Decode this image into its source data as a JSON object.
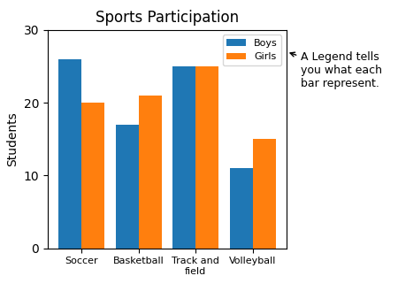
{
  "chart_data": {
    "type": "bar",
    "title": "Sports Participation",
    "categories": [
      "Soccer",
      "Basketball",
      "Track and\nfield",
      "Volleyball"
    ],
    "series": [
      {
        "name": "Boys",
        "values": [
          26,
          17,
          25,
          11
        ]
      },
      {
        "name": "Girls",
        "values": [
          20,
          21,
          25,
          15
        ]
      }
    ],
    "y_label": "Students",
    "ylim": [
      0,
      30
    ],
    "yticks": [
      0,
      10,
      20,
      30
    ],
    "legend": "upper right",
    "annotations": [
      "A Legend tells\nyou what each\nbar represent."
    ]
  }
}
